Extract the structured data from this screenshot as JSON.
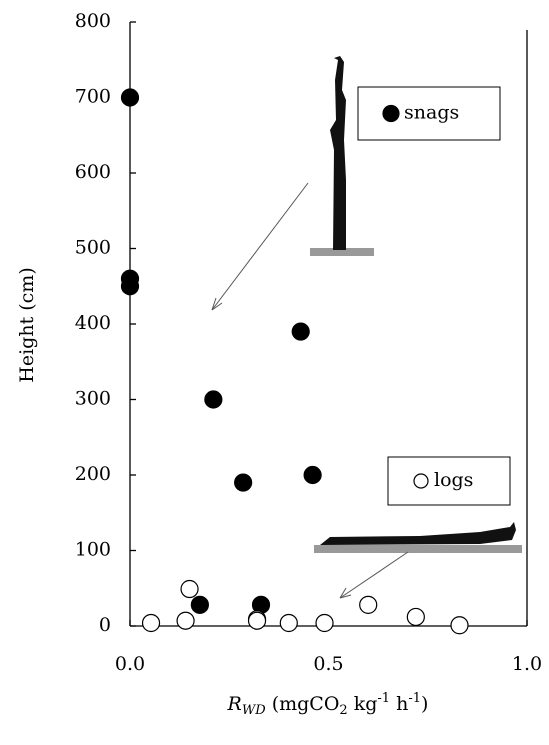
{
  "chart_data": {
    "type": "scatter",
    "ylabel": "Height (cm)",
    "xlabel_parts": [
      {
        "text": "R",
        "style": "italic"
      },
      {
        "text": "WD",
        "style": "italic-sub"
      },
      {
        "text": " (mgCO",
        "style": "normal"
      },
      {
        "text": "2",
        "style": "sub"
      },
      {
        "text": " kg",
        "style": "normal"
      },
      {
        "text": "-1",
        "style": "sup"
      },
      {
        "text": " h",
        "style": "normal"
      },
      {
        "text": "-1",
        "style": "sup"
      },
      {
        "text": ")",
        "style": "normal"
      }
    ],
    "xlim": [
      0,
      1
    ],
    "ylim": [
      0,
      800
    ],
    "xticks": [
      {
        "value": 0,
        "label": "0.0"
      },
      {
        "value": 0.5,
        "label": "0.5"
      },
      {
        "value": 1,
        "label": "1.0"
      }
    ],
    "yticks": [
      0,
      100,
      200,
      300,
      400,
      500,
      600,
      700,
      800
    ],
    "series": [
      {
        "name": "snags",
        "color": "#000000",
        "filled": true,
        "x": [
          0.0,
          0.0,
          0.0,
          0.21,
          0.285,
          0.43,
          0.46,
          0.176,
          0.33
        ],
        "values": [
          700,
          460,
          450,
          300,
          190,
          390,
          200,
          28,
          28
        ]
      },
      {
        "name": "logs",
        "color": "#000000",
        "filled": false,
        "x": [
          0.053,
          0.14,
          0.15,
          0.32,
          0.32,
          0.4,
          0.49,
          0.6,
          0.72,
          0.83
        ],
        "values": [
          4,
          7,
          49,
          9,
          7,
          4,
          4,
          28,
          12,
          1
        ]
      }
    ]
  }
}
